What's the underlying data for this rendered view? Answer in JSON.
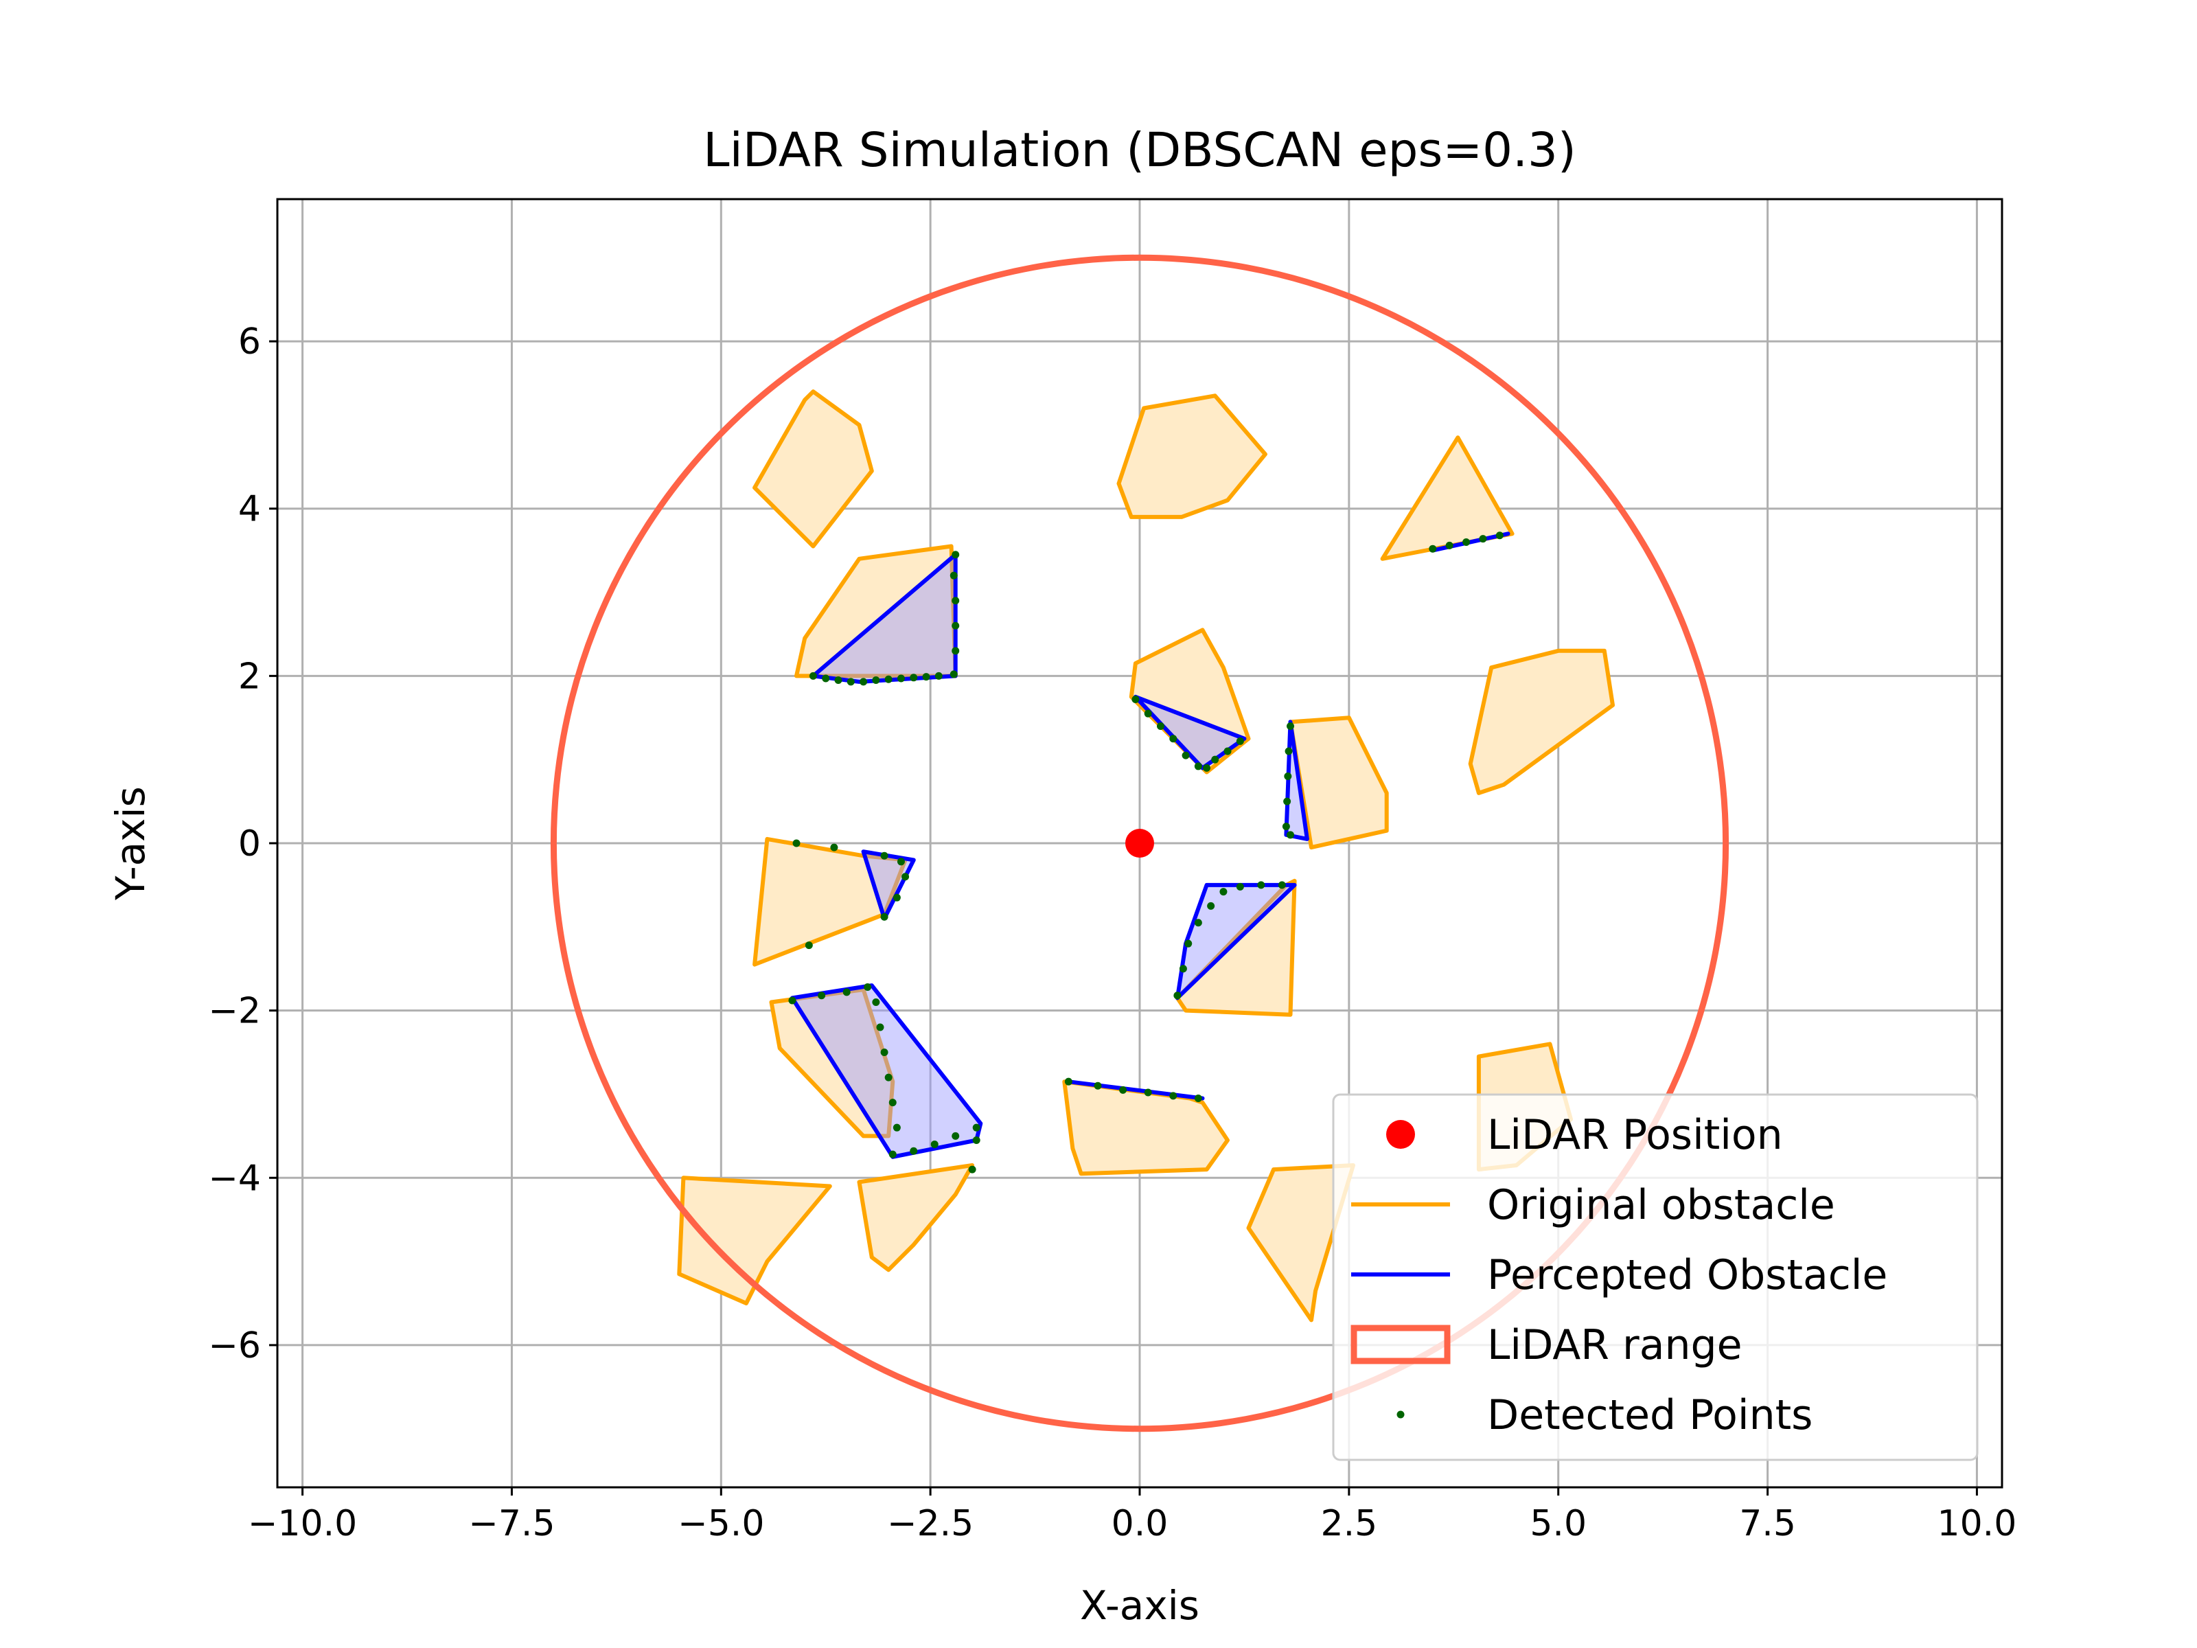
{
  "chart_data": {
    "type": "scatter",
    "title": "LiDAR Simulation (DBSCAN eps=0.3)",
    "xlabel": "X-axis",
    "ylabel": "Y-axis",
    "xlim": [
      -10.3,
      10.3
    ],
    "ylim": [
      -7.7,
      7.7
    ],
    "xticks": [
      -10.0,
      -7.5,
      -5.0,
      -2.5,
      0.0,
      2.5,
      5.0,
      7.5,
      10.0
    ],
    "xtick_labels": [
      "−10.0",
      "−7.5",
      "−5.0",
      "−2.5",
      "0.0",
      "2.5",
      "5.0",
      "7.5",
      "10.0"
    ],
    "yticks": [
      -6,
      -4,
      -2,
      0,
      2,
      4,
      6
    ],
    "ytick_labels": [
      "−6",
      "−4",
      "−2",
      "0",
      "2",
      "4",
      "6"
    ],
    "grid": true,
    "legend_position": "bottom-right",
    "legend": [
      {
        "label": "LiDAR Position",
        "kind": "dot",
        "color": "#ff0000"
      },
      {
        "label": "Original obstacle",
        "kind": "line",
        "color": "#ffa500"
      },
      {
        "label": "Percepted Obstacle",
        "kind": "line",
        "color": "#0000ff"
      },
      {
        "label": "LiDAR range",
        "kind": "patch",
        "color": "#ff6347"
      },
      {
        "label": "Detected Points",
        "kind": "smalldot",
        "color": "#006400"
      }
    ],
    "lidar_position": {
      "x": 0,
      "y": 0,
      "color": "#ff0000"
    },
    "lidar_range": {
      "cx": 0,
      "cy": 0,
      "r": 7,
      "color": "#ff6347"
    },
    "colors": {
      "original_edge": "#ffa500",
      "original_fill": "#ffebc8",
      "percepted_edge": "#0000ff",
      "percepted_fill": "#9999ff",
      "points": "#006400",
      "grid": "#b0b0b0"
    },
    "original_obstacles": [
      [
        [
          -4.6,
          4.25
        ],
        [
          -4.0,
          5.3
        ],
        [
          -3.9,
          5.4
        ],
        [
          -3.35,
          5.0
        ],
        [
          -3.2,
          4.45
        ],
        [
          -3.9,
          3.55
        ]
      ],
      [
        [
          0.05,
          5.2
        ],
        [
          0.9,
          5.35
        ],
        [
          1.5,
          4.65
        ],
        [
          1.05,
          4.1
        ],
        [
          0.5,
          3.9
        ],
        [
          -0.1,
          3.9
        ],
        [
          -0.25,
          4.3
        ]
      ],
      [
        [
          2.9,
          3.4
        ],
        [
          3.8,
          4.85
        ],
        [
          4.45,
          3.7
        ]
      ],
      [
        [
          -4.1,
          2.0
        ],
        [
          -4.0,
          2.45
        ],
        [
          -3.35,
          3.4
        ],
        [
          -2.25,
          3.55
        ],
        [
          -2.2,
          2.0
        ]
      ],
      [
        [
          -0.1,
          1.75
        ],
        [
          -0.05,
          2.15
        ],
        [
          0.75,
          2.55
        ],
        [
          1.0,
          2.1
        ],
        [
          1.3,
          1.25
        ],
        [
          0.8,
          0.85
        ]
      ],
      [
        [
          1.8,
          1.45
        ],
        [
          2.5,
          1.5
        ],
        [
          2.95,
          0.6
        ],
        [
          2.95,
          0.15
        ],
        [
          2.05,
          -0.05
        ]
      ],
      [
        [
          3.95,
          0.95
        ],
        [
          4.2,
          2.1
        ],
        [
          5.0,
          2.3
        ],
        [
          5.55,
          2.3
        ],
        [
          5.65,
          1.65
        ],
        [
          4.35,
          0.7
        ],
        [
          4.05,
          0.6
        ]
      ],
      [
        [
          -4.45,
          0.05
        ],
        [
          -3.3,
          -0.15
        ],
        [
          -2.8,
          -0.2
        ],
        [
          -3.05,
          -0.85
        ],
        [
          -4.6,
          -1.45
        ]
      ],
      [
        [
          0.45,
          -1.85
        ],
        [
          1.75,
          -0.5
        ],
        [
          1.85,
          -0.45
        ],
        [
          1.8,
          -2.05
        ],
        [
          0.55,
          -2.0
        ]
      ],
      [
        [
          -4.4,
          -1.9
        ],
        [
          -3.3,
          -1.75
        ],
        [
          -2.95,
          -2.85
        ],
        [
          -3.0,
          -3.5
        ],
        [
          -3.3,
          -3.5
        ],
        [
          -4.3,
          -2.45
        ]
      ],
      [
        [
          -0.9,
          -2.85
        ],
        [
          0.6,
          -3.05
        ],
        [
          0.75,
          -3.1
        ],
        [
          1.05,
          -3.55
        ],
        [
          0.8,
          -3.9
        ],
        [
          -0.7,
          -3.95
        ],
        [
          -0.8,
          -3.65
        ]
      ],
      [
        [
          4.05,
          -2.55
        ],
        [
          4.9,
          -2.4
        ],
        [
          5.15,
          -3.3
        ],
        [
          4.5,
          -3.85
        ],
        [
          4.05,
          -3.9
        ]
      ],
      [
        [
          -5.45,
          -4.0
        ],
        [
          -3.7,
          -4.1
        ],
        [
          -4.45,
          -5.0
        ],
        [
          -4.7,
          -5.5
        ],
        [
          -5.5,
          -5.15
        ]
      ],
      [
        [
          -3.35,
          -4.05
        ],
        [
          -2.0,
          -3.85
        ],
        [
          -2.2,
          -4.2
        ],
        [
          -2.7,
          -4.8
        ],
        [
          -3.0,
          -5.1
        ],
        [
          -3.2,
          -4.95
        ]
      ],
      [
        [
          1.6,
          -3.9
        ],
        [
          2.55,
          -3.85
        ],
        [
          2.1,
          -5.35
        ],
        [
          2.05,
          -5.7
        ],
        [
          1.3,
          -4.6
        ]
      ]
    ],
    "percepted_obstacles": [
      [
        [
          -3.9,
          2.0
        ],
        [
          -2.2,
          3.45
        ],
        [
          -2.2,
          2.0
        ],
        [
          -3.35,
          1.93
        ]
      ],
      [
        [
          -0.05,
          1.75
        ],
        [
          1.25,
          1.25
        ],
        [
          0.75,
          0.9
        ]
      ],
      [
        [
          3.5,
          3.5
        ],
        [
          4.4,
          3.7
        ]
      ],
      [
        [
          1.8,
          1.45
        ],
        [
          1.75,
          0.1
        ],
        [
          2.0,
          0.05
        ]
      ],
      [
        [
          -3.3,
          -0.1
        ],
        [
          -2.7,
          -0.2
        ],
        [
          -3.05,
          -0.9
        ]
      ],
      [
        [
          0.45,
          -1.85
        ],
        [
          1.85,
          -0.5
        ],
        [
          0.8,
          -0.5
        ],
        [
          0.55,
          -1.2
        ]
      ],
      [
        [
          -4.15,
          -1.85
        ],
        [
          -3.2,
          -1.7
        ],
        [
          -1.9,
          -3.35
        ],
        [
          -1.95,
          -3.55
        ],
        [
          -2.95,
          -3.75
        ]
      ],
      [
        [
          -0.85,
          -2.85
        ],
        [
          0.75,
          -3.05
        ]
      ]
    ],
    "detected_points": [
      [
        -3.9,
        2.0
      ],
      [
        -3.75,
        1.97
      ],
      [
        -3.6,
        1.95
      ],
      [
        -3.45,
        1.93
      ],
      [
        -3.3,
        1.93
      ],
      [
        -3.15,
        1.95
      ],
      [
        -3.0,
        1.96
      ],
      [
        -2.85,
        1.97
      ],
      [
        -2.7,
        1.98
      ],
      [
        -2.55,
        1.99
      ],
      [
        -2.4,
        2.0
      ],
      [
        -2.22,
        2.02
      ],
      [
        -2.2,
        2.3
      ],
      [
        -2.2,
        2.6
      ],
      [
        -2.2,
        2.9
      ],
      [
        -2.22,
        3.2
      ],
      [
        -2.2,
        3.45
      ],
      [
        -0.05,
        1.72
      ],
      [
        0.1,
        1.55
      ],
      [
        0.25,
        1.4
      ],
      [
        0.4,
        1.25
      ],
      [
        0.55,
        1.05
      ],
      [
        0.7,
        0.92
      ],
      [
        0.8,
        0.9
      ],
      [
        0.9,
        1.0
      ],
      [
        1.05,
        1.1
      ],
      [
        1.2,
        1.22
      ],
      [
        3.5,
        3.52
      ],
      [
        3.7,
        3.56
      ],
      [
        3.9,
        3.6
      ],
      [
        4.1,
        3.64
      ],
      [
        4.3,
        3.68
      ],
      [
        1.8,
        1.4
      ],
      [
        1.78,
        1.1
      ],
      [
        1.77,
        0.8
      ],
      [
        1.76,
        0.5
      ],
      [
        1.75,
        0.2
      ],
      [
        1.8,
        0.1
      ],
      [
        -4.1,
        0.0
      ],
      [
        -3.65,
        -0.05
      ],
      [
        -3.05,
        -0.15
      ],
      [
        -2.85,
        -0.22
      ],
      [
        -2.8,
        -0.4
      ],
      [
        -2.9,
        -0.65
      ],
      [
        -3.05,
        -0.88
      ],
      [
        -3.95,
        -1.22
      ],
      [
        0.45,
        -1.82
      ],
      [
        0.52,
        -1.5
      ],
      [
        0.58,
        -1.2
      ],
      [
        0.7,
        -0.95
      ],
      [
        0.85,
        -0.75
      ],
      [
        1.0,
        -0.58
      ],
      [
        1.2,
        -0.52
      ],
      [
        1.45,
        -0.5
      ],
      [
        1.7,
        -0.5
      ],
      [
        -4.15,
        -1.88
      ],
      [
        -3.8,
        -1.82
      ],
      [
        -3.5,
        -1.78
      ],
      [
        -3.25,
        -1.72
      ],
      [
        -3.15,
        -1.9
      ],
      [
        -3.1,
        -2.2
      ],
      [
        -3.05,
        -2.5
      ],
      [
        -3.0,
        -2.8
      ],
      [
        -2.95,
        -3.1
      ],
      [
        -2.9,
        -3.4
      ],
      [
        -2.95,
        -3.72
      ],
      [
        -2.7,
        -3.68
      ],
      [
        -2.45,
        -3.6
      ],
      [
        -2.2,
        -3.5
      ],
      [
        -1.95,
        -3.4
      ],
      [
        -1.95,
        -3.55
      ],
      [
        -2.0,
        -3.9
      ],
      [
        -0.85,
        -2.85
      ],
      [
        -0.5,
        -2.9
      ],
      [
        -0.2,
        -2.95
      ],
      [
        0.1,
        -2.98
      ],
      [
        0.4,
        -3.02
      ],
      [
        0.7,
        -3.05
      ]
    ]
  }
}
